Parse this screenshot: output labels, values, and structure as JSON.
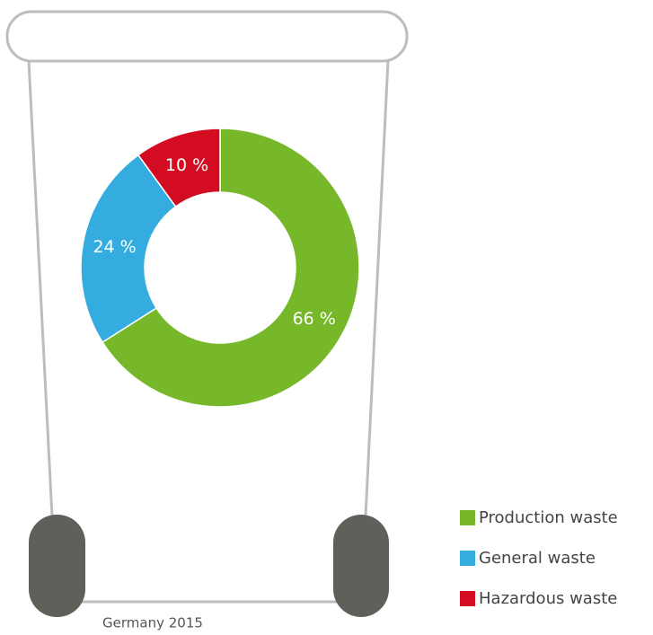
{
  "chart_data": {
    "type": "pie",
    "subtitle": "Germany 2015",
    "categories": [
      "Production waste",
      "General waste",
      "Hazardous waste"
    ],
    "values": [
      66,
      24,
      10
    ],
    "value_labels": [
      "66 %",
      "24 %",
      "10 %"
    ],
    "colors": [
      "#77b82a",
      "#35ace0",
      "#d40c22"
    ]
  }
}
